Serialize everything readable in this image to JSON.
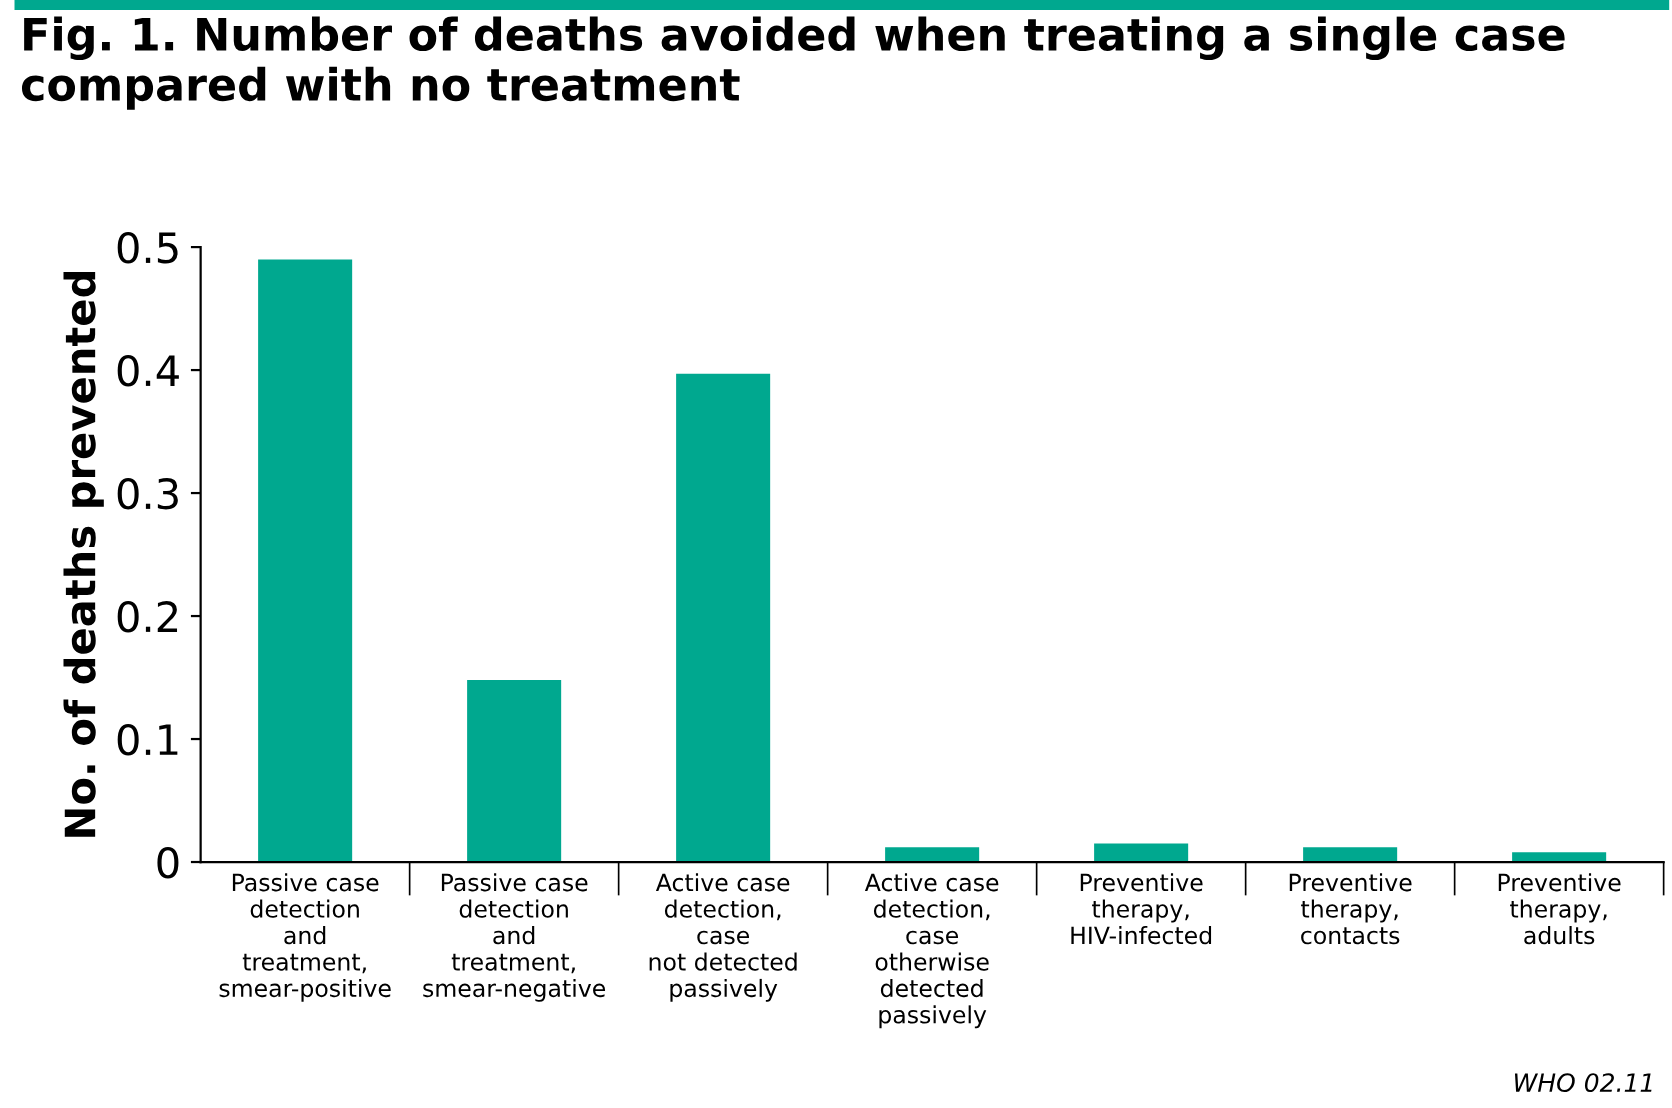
{
  "chart_data": {
    "type": "bar",
    "title": "Fig. 1. Number of deaths avoided when treating a single case\ncompared with no treatment",
    "ylabel": "No. of deaths prevented",
    "categories": [
      "Passive case\ndetection\nand\ntreatment,\nsmear-positive",
      "Passive case\ndetection\nand\ntreatment,\nsmear-negative",
      "Active case\ndetection,\ncase\nnot detected\npassively",
      "Active case\ndetection,\ncase\notherwise\ndetected\npassively",
      "Preventive\ntherapy,\nHIV-infected",
      "Preventive\ntherapy,\ncontacts",
      "Preventive\ntherapy,\nadults"
    ],
    "values": [
      0.49,
      0.148,
      0.397,
      0.012,
      0.015,
      0.012,
      0.008
    ],
    "color": "#00a88f",
    "ylim": [
      0,
      0.5
    ],
    "yticks": [
      0,
      0.1,
      0.2,
      0.3,
      0.4,
      0.5
    ],
    "grid": false,
    "annotations": [
      "WHO 02.11"
    ]
  }
}
